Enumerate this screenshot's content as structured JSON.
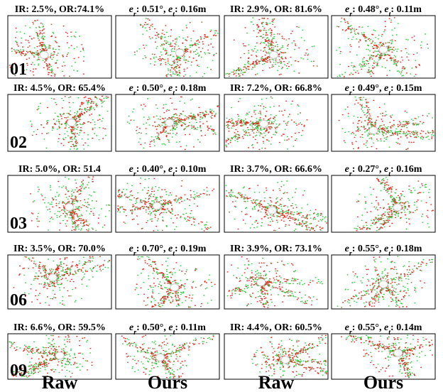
{
  "rows": [
    {
      "label": "01",
      "captions": [
        "IR: 2.5%, OR:74.1%",
        [
          "e",
          "r",
          ": 0.51°, ",
          "e",
          "t",
          ": 0.16m"
        ],
        "IR: 2.9%, OR: 81.6%",
        [
          "e",
          "r",
          ": 0.48°, ",
          "e",
          "t",
          ": 0.11m"
        ]
      ]
    },
    {
      "label": "02",
      "captions": [
        "IR: 4.5%, OR: 65.4%",
        [
          "e",
          "r",
          ": 0.50°, ",
          "e",
          "t",
          ": 0.18m"
        ],
        "IR: 7.2%, OR: 66.8%",
        [
          "e",
          "r",
          ": 0.49°, ",
          "e",
          "t",
          ": 0.15m"
        ]
      ]
    },
    {
      "label": "03",
      "captions": [
        "IR: 5.0%, OR: 51.4",
        [
          "e",
          "r",
          ": 0.40°, ",
          "e",
          "t",
          ": 0.10m"
        ],
        "IR: 3.7%, OR: 66.6%",
        [
          "e",
          "r",
          ": 0.27°, ",
          "e",
          "t",
          ": 0.16m"
        ]
      ]
    },
    {
      "label": "06",
      "captions": [
        "IR: 3.5%, OR: 70.0%",
        [
          "e",
          "r",
          ": 0.70°, ",
          "e",
          "t",
          ": 0.19m"
        ],
        "IR: 3.9%, OR: 73.1%",
        [
          "e",
          "r",
          ": 0.55°, ",
          "e",
          "t",
          ": 0.18m"
        ]
      ]
    },
    {
      "label": "09",
      "captions": [
        "IR: 6.6%, OR: 59.5%",
        [
          "e",
          "r",
          ": 0.50°, ",
          "e",
          "t",
          ": 0.11m"
        ],
        "IR: 4.4%, OR: 60.5%",
        [
          "e",
          "r",
          ": 0.55°, ",
          "e",
          "t",
          ": 0.14m"
        ]
      ]
    }
  ],
  "column_labels": [
    "Raw",
    "Ours",
    "Raw",
    "Ours"
  ]
}
